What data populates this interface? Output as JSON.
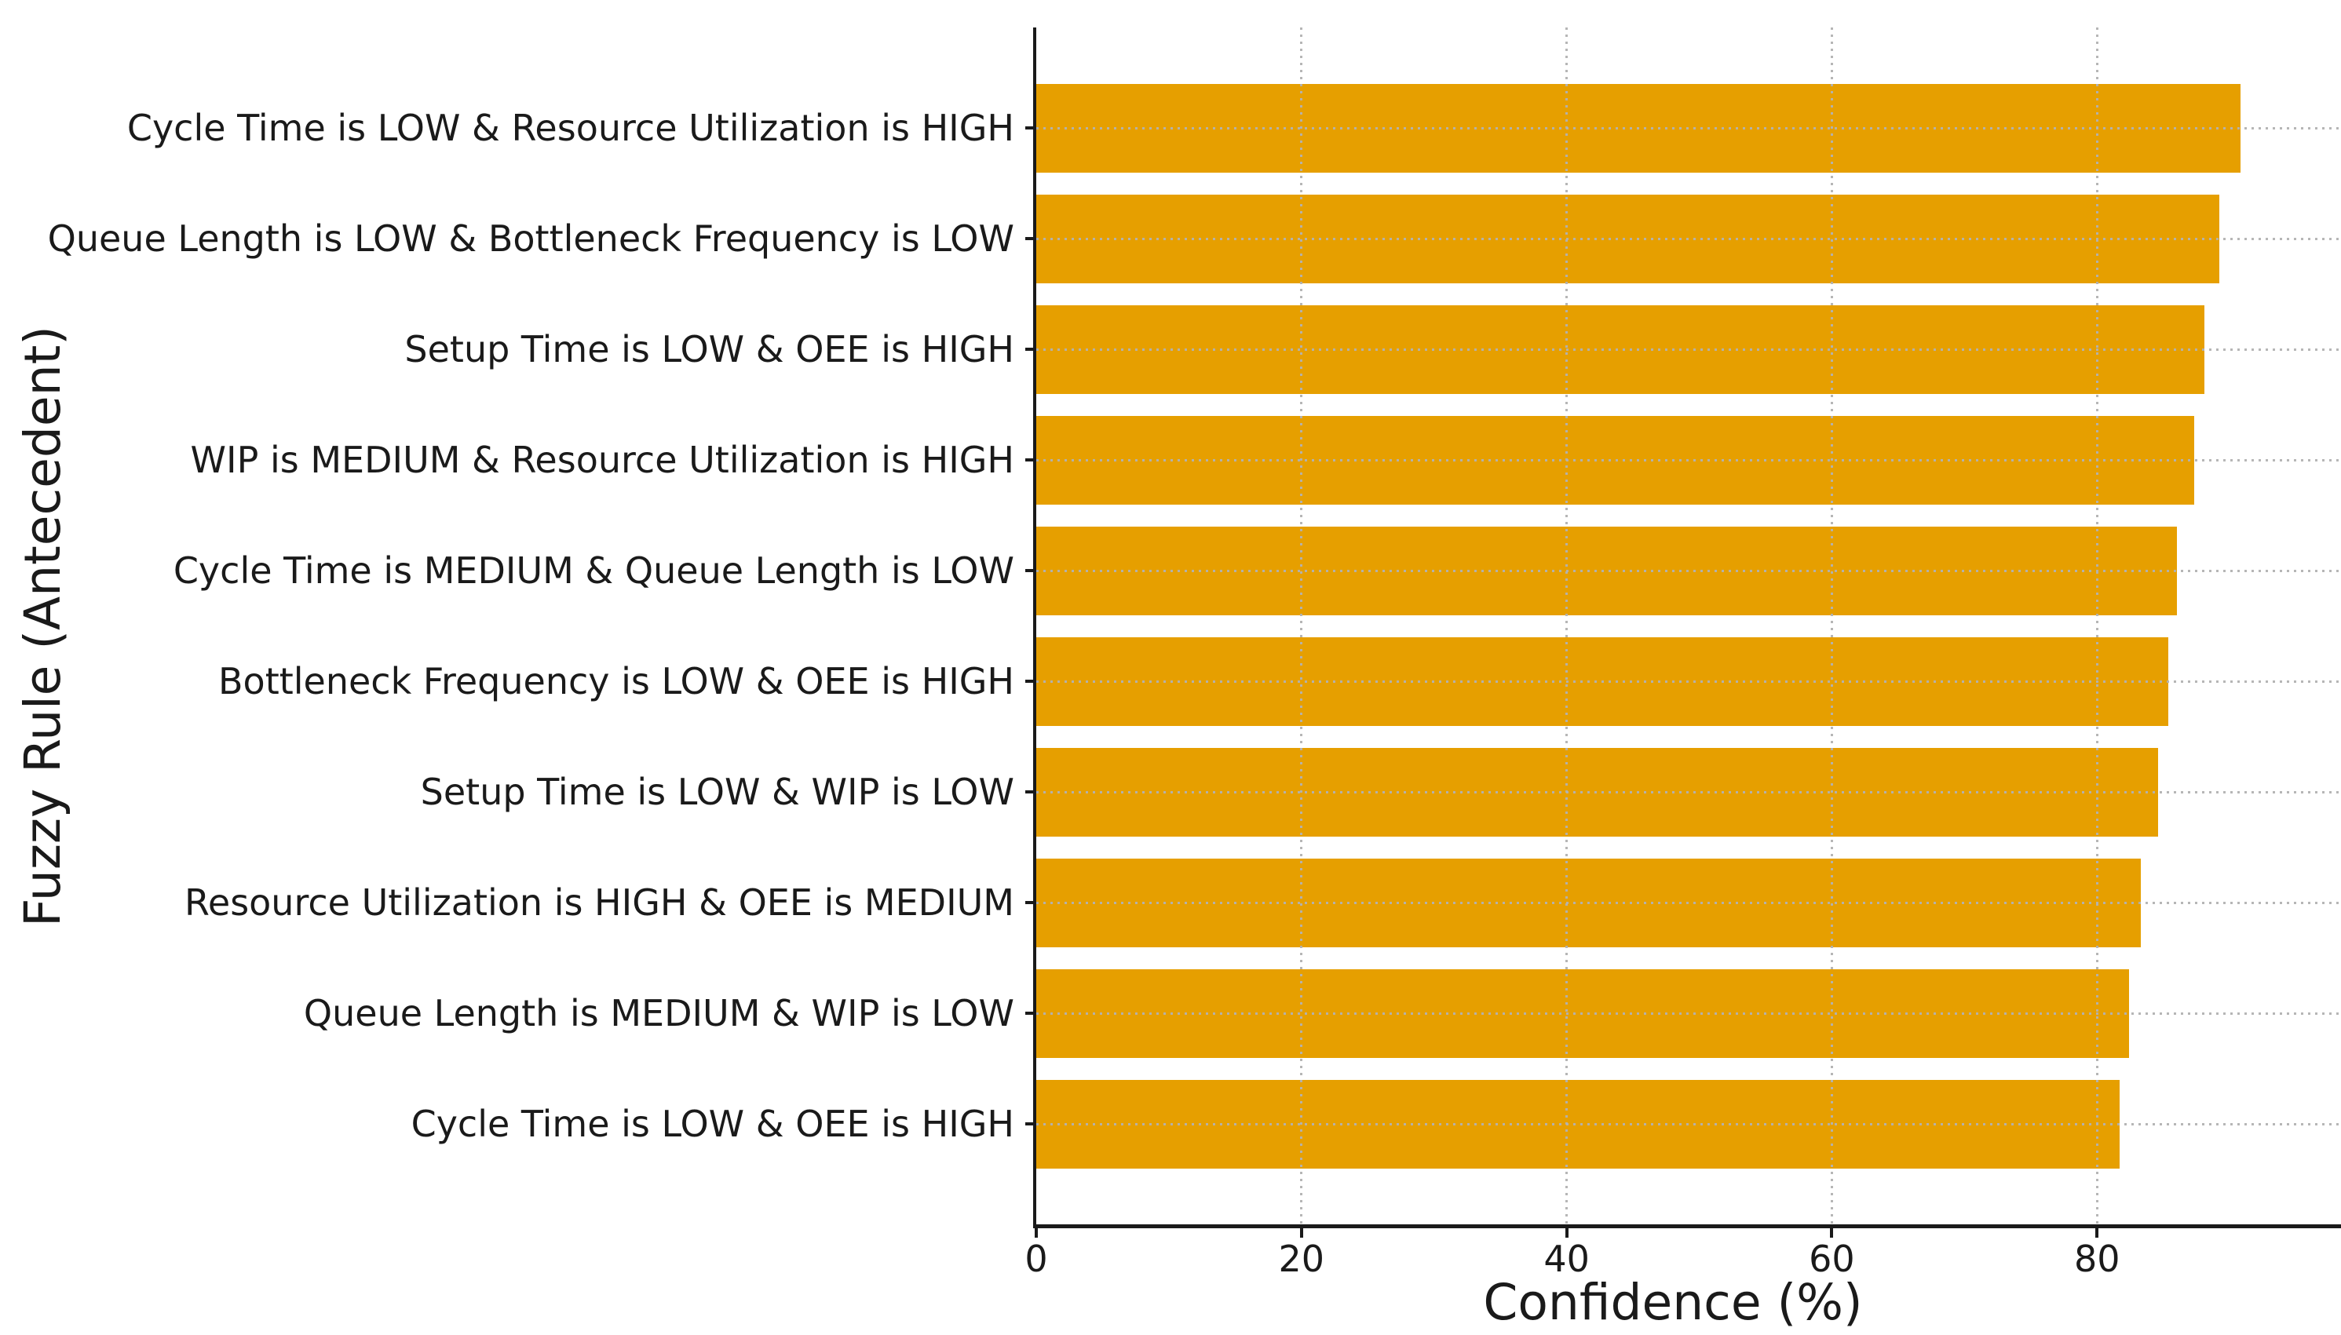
{
  "chart_data": {
    "type": "bar",
    "orientation": "horizontal",
    "xlabel": "Confidence (%)",
    "ylabel": "Fuzzy Rule (Antecedent)",
    "categories": [
      "Cycle Time is LOW & Resource Utilization is HIGH",
      "Queue Length is LOW & Bottleneck Frequency is LOW",
      "Setup Time is LOW & OEE is HIGH",
      "WIP is MEDIUM & Resource Utilization is HIGH",
      "Cycle Time is MEDIUM & Queue Length is LOW",
      "Bottleneck Frequency is LOW & OEE is HIGH",
      "Setup Time is LOW & WIP is LOW",
      "Resource Utilization is HIGH & OEE is MEDIUM",
      "Queue Length is MEDIUM & WIP is LOW",
      "Cycle Time is LOW & OEE is HIGH"
    ],
    "values": [
      90.8,
      89.2,
      88.1,
      87.3,
      86.0,
      85.4,
      84.6,
      83.3,
      82.4,
      81.7
    ],
    "xticks": [
      0,
      20,
      40,
      60,
      80
    ],
    "xlim": [
      0,
      98.4
    ],
    "grid": "dotted, both axes, drawn above bars",
    "legend": "none",
    "bar_color": "#E69F00",
    "grid_color": "#b2b2b2",
    "text_color": "#1a1a1a",
    "background_color": "#ffffff"
  }
}
